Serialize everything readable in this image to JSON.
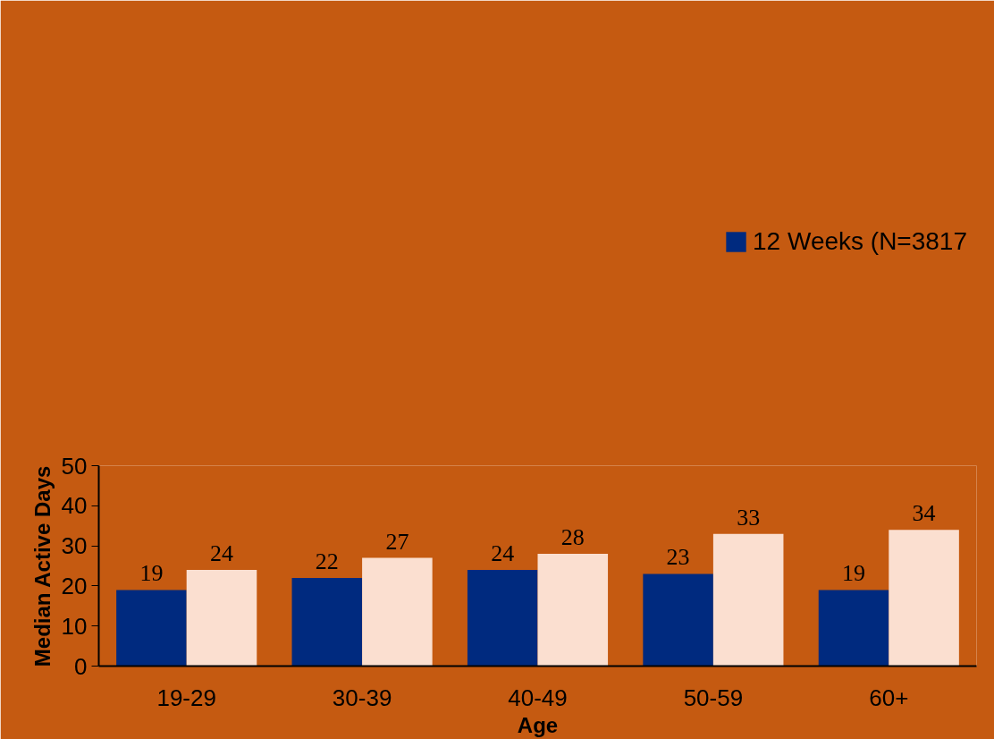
{
  "chart_data": {
    "type": "bar",
    "xlabel": "Age",
    "ylabel": "Median Active Days",
    "categories": [
      "19-29",
      "30-39",
      "40-49",
      "50-59",
      "60+"
    ],
    "series": [
      {
        "name": "12 Weeks (N=3817",
        "color": "#002a7f",
        "values": [
          19,
          22,
          24,
          23,
          19
        ]
      },
      {
        "color": "#fbdfd0",
        "values": [
          24,
          27,
          28,
          33,
          34
        ]
      }
    ],
    "ylim": [
      0,
      50
    ],
    "yticks": [
      0,
      10,
      20,
      30,
      40,
      50
    ],
    "grid": false,
    "legend": "top right",
    "data_labels": true
  }
}
